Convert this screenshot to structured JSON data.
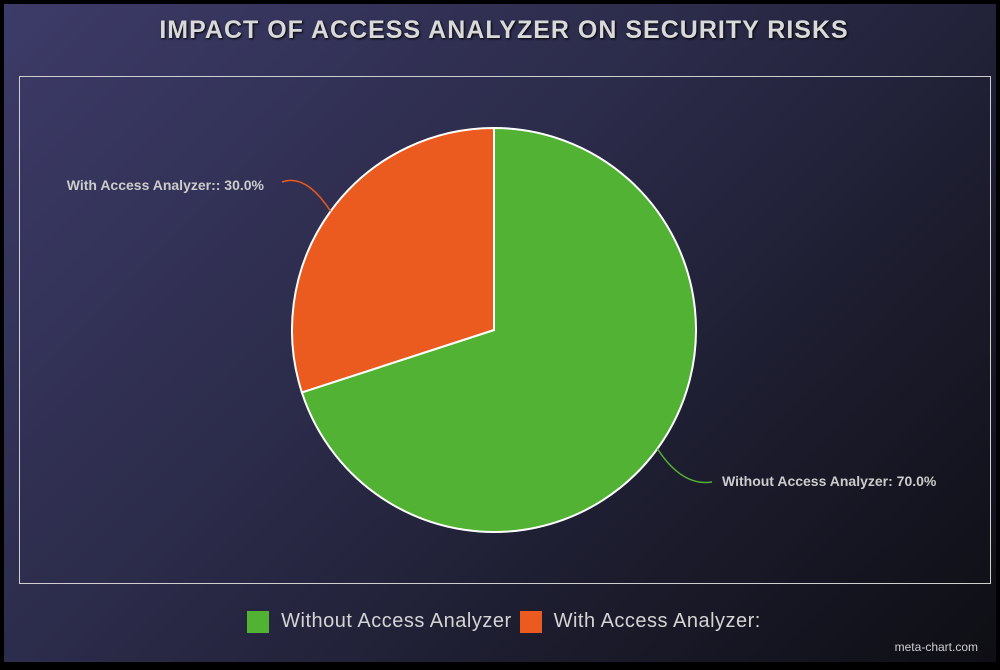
{
  "chart_data": {
    "type": "pie",
    "title": "IMPACT OF ACCESS ANALYZER ON SECURITY RISKS",
    "slices": [
      {
        "name": "Without Access Analyzer",
        "value": 70.0,
        "label": "Without Access Analyzer: 70.0%",
        "color": "#52b233"
      },
      {
        "name": "With Access Analyzer:",
        "value": 30.0,
        "label": "With Access Analyzer:: 30.0%",
        "color": "#eb5a1e"
      }
    ],
    "legend_position": "bottom"
  },
  "watermark": "meta-chart.com"
}
